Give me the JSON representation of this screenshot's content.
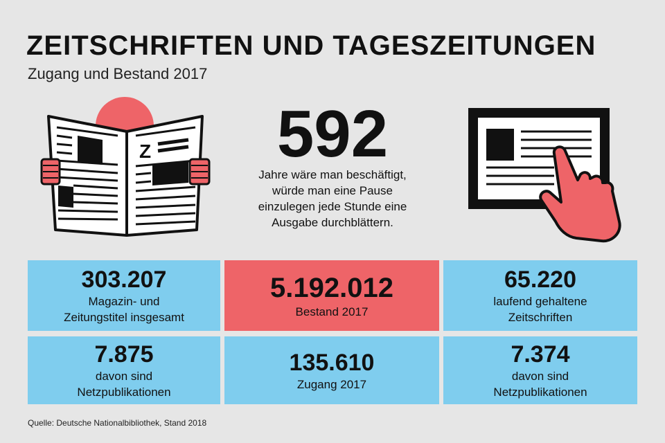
{
  "header": {
    "title": "ZEITSCHRIFTEN UND TAGESZEITUNGEN",
    "subtitle": "Zugang und Bestand 2017"
  },
  "highlight": {
    "number": "592",
    "description_lines": [
      "Jahre wäre man beschäftigt,",
      "würde man eine Pause",
      "einzulegen jede Stunde eine",
      "Ausgabe durchblättern."
    ]
  },
  "icons": {
    "left": "newspaper-icon",
    "right": "tablet-touch-icon",
    "newspaper_letter": "Z"
  },
  "colors": {
    "background": "#e6e6e6",
    "blue": "#7fcdee",
    "red": "#ee6468",
    "dark": "#111111"
  },
  "stats": [
    {
      "number": "303.207",
      "lines": [
        "Magazin- und",
        "Zeitungstitel insgesamt"
      ]
    },
    {
      "number": "5.192.012",
      "lines": [
        "Bestand 2017"
      ]
    },
    {
      "number": "65.220",
      "lines": [
        "laufend gehaltene",
        "Zeitschriften"
      ]
    },
    {
      "number": "7.875",
      "lines": [
        "davon sind",
        "Netzpublikationen"
      ]
    },
    {
      "number": "135.610",
      "lines": [
        "Zugang 2017"
      ]
    },
    {
      "number": "7.374",
      "lines": [
        "davon sind",
        "Netzpublikationen"
      ]
    }
  ],
  "source": "Quelle: Deutsche Nationalbibliothek, Stand 2018"
}
